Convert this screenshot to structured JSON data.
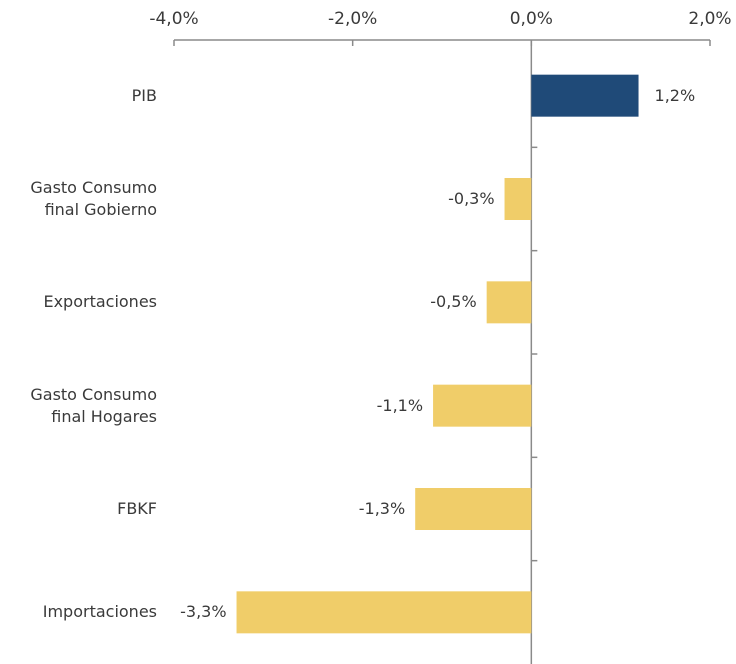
{
  "chart_data": {
    "type": "bar",
    "orientation": "horizontal",
    "categories": [
      "PIB",
      "Gasto Consumo final Gobierno",
      "Exportaciones",
      "Gasto Consumo final Hogares",
      "FBKF",
      "Importaciones"
    ],
    "values": [
      1.2,
      -0.3,
      -0.5,
      -1.1,
      -1.3,
      -3.3
    ],
    "value_labels": [
      "1,2%",
      "-0,3%",
      "-0,5%",
      "-1,1%",
      "-1,3%",
      "-3,3%"
    ],
    "colors": [
      "#1f4a78",
      "#f0cd69",
      "#f0cd69",
      "#f0cd69",
      "#f0cd69",
      "#f0cd69"
    ],
    "xlim": [
      -4,
      2
    ],
    "xticks": [
      {
        "value": -4,
        "label": "-4,0%"
      },
      {
        "value": -2,
        "label": "-2,0%"
      },
      {
        "value": 0,
        "label": "0,0%"
      },
      {
        "value": 2,
        "label": "2,0%"
      }
    ],
    "grid": false
  }
}
